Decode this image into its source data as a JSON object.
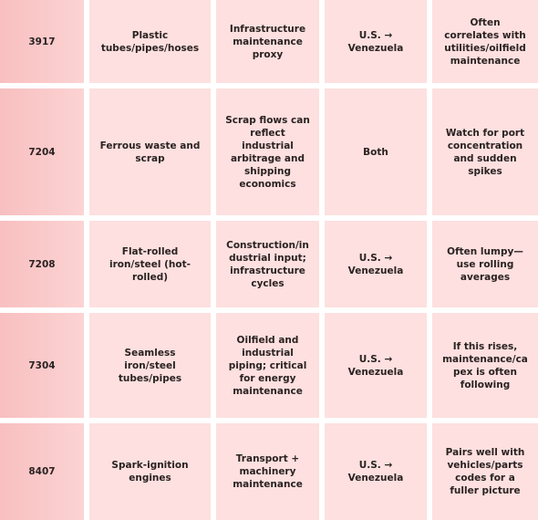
{
  "table": {
    "rows": [
      [
        "3917",
        "Plastic tubes/pipes/hoses",
        "Infrastructure maintenance proxy",
        "U.S. → Venezuela",
        "Often correlates with utilities/oilfield maintenance"
      ],
      [
        "7204",
        "Ferrous waste and scrap",
        "Scrap flows can reflect industrial arbitrage and shipping economics",
        "Both",
        "Watch for port concentration and sudden spikes"
      ],
      [
        "7208",
        "Flat-rolled iron/steel (hot-rolled)",
        "Construction/industrial input; infrastructure cycles",
        "U.S. → Venezuela",
        "Often lumpy—use rolling averages"
      ],
      [
        "7304",
        "Seamless iron/steel tubes/pipes",
        "Oilfield and industrial piping; critical for energy maintenance",
        "U.S. → Venezuela",
        "If this rises, maintenance/capex is often following"
      ],
      [
        "8407",
        "Spark-ignition engines",
        "Transport + machinery maintenance",
        "U.S. → Venezuela",
        "Pairs well with vehicles/parts codes for a fuller picture"
      ]
    ]
  }
}
